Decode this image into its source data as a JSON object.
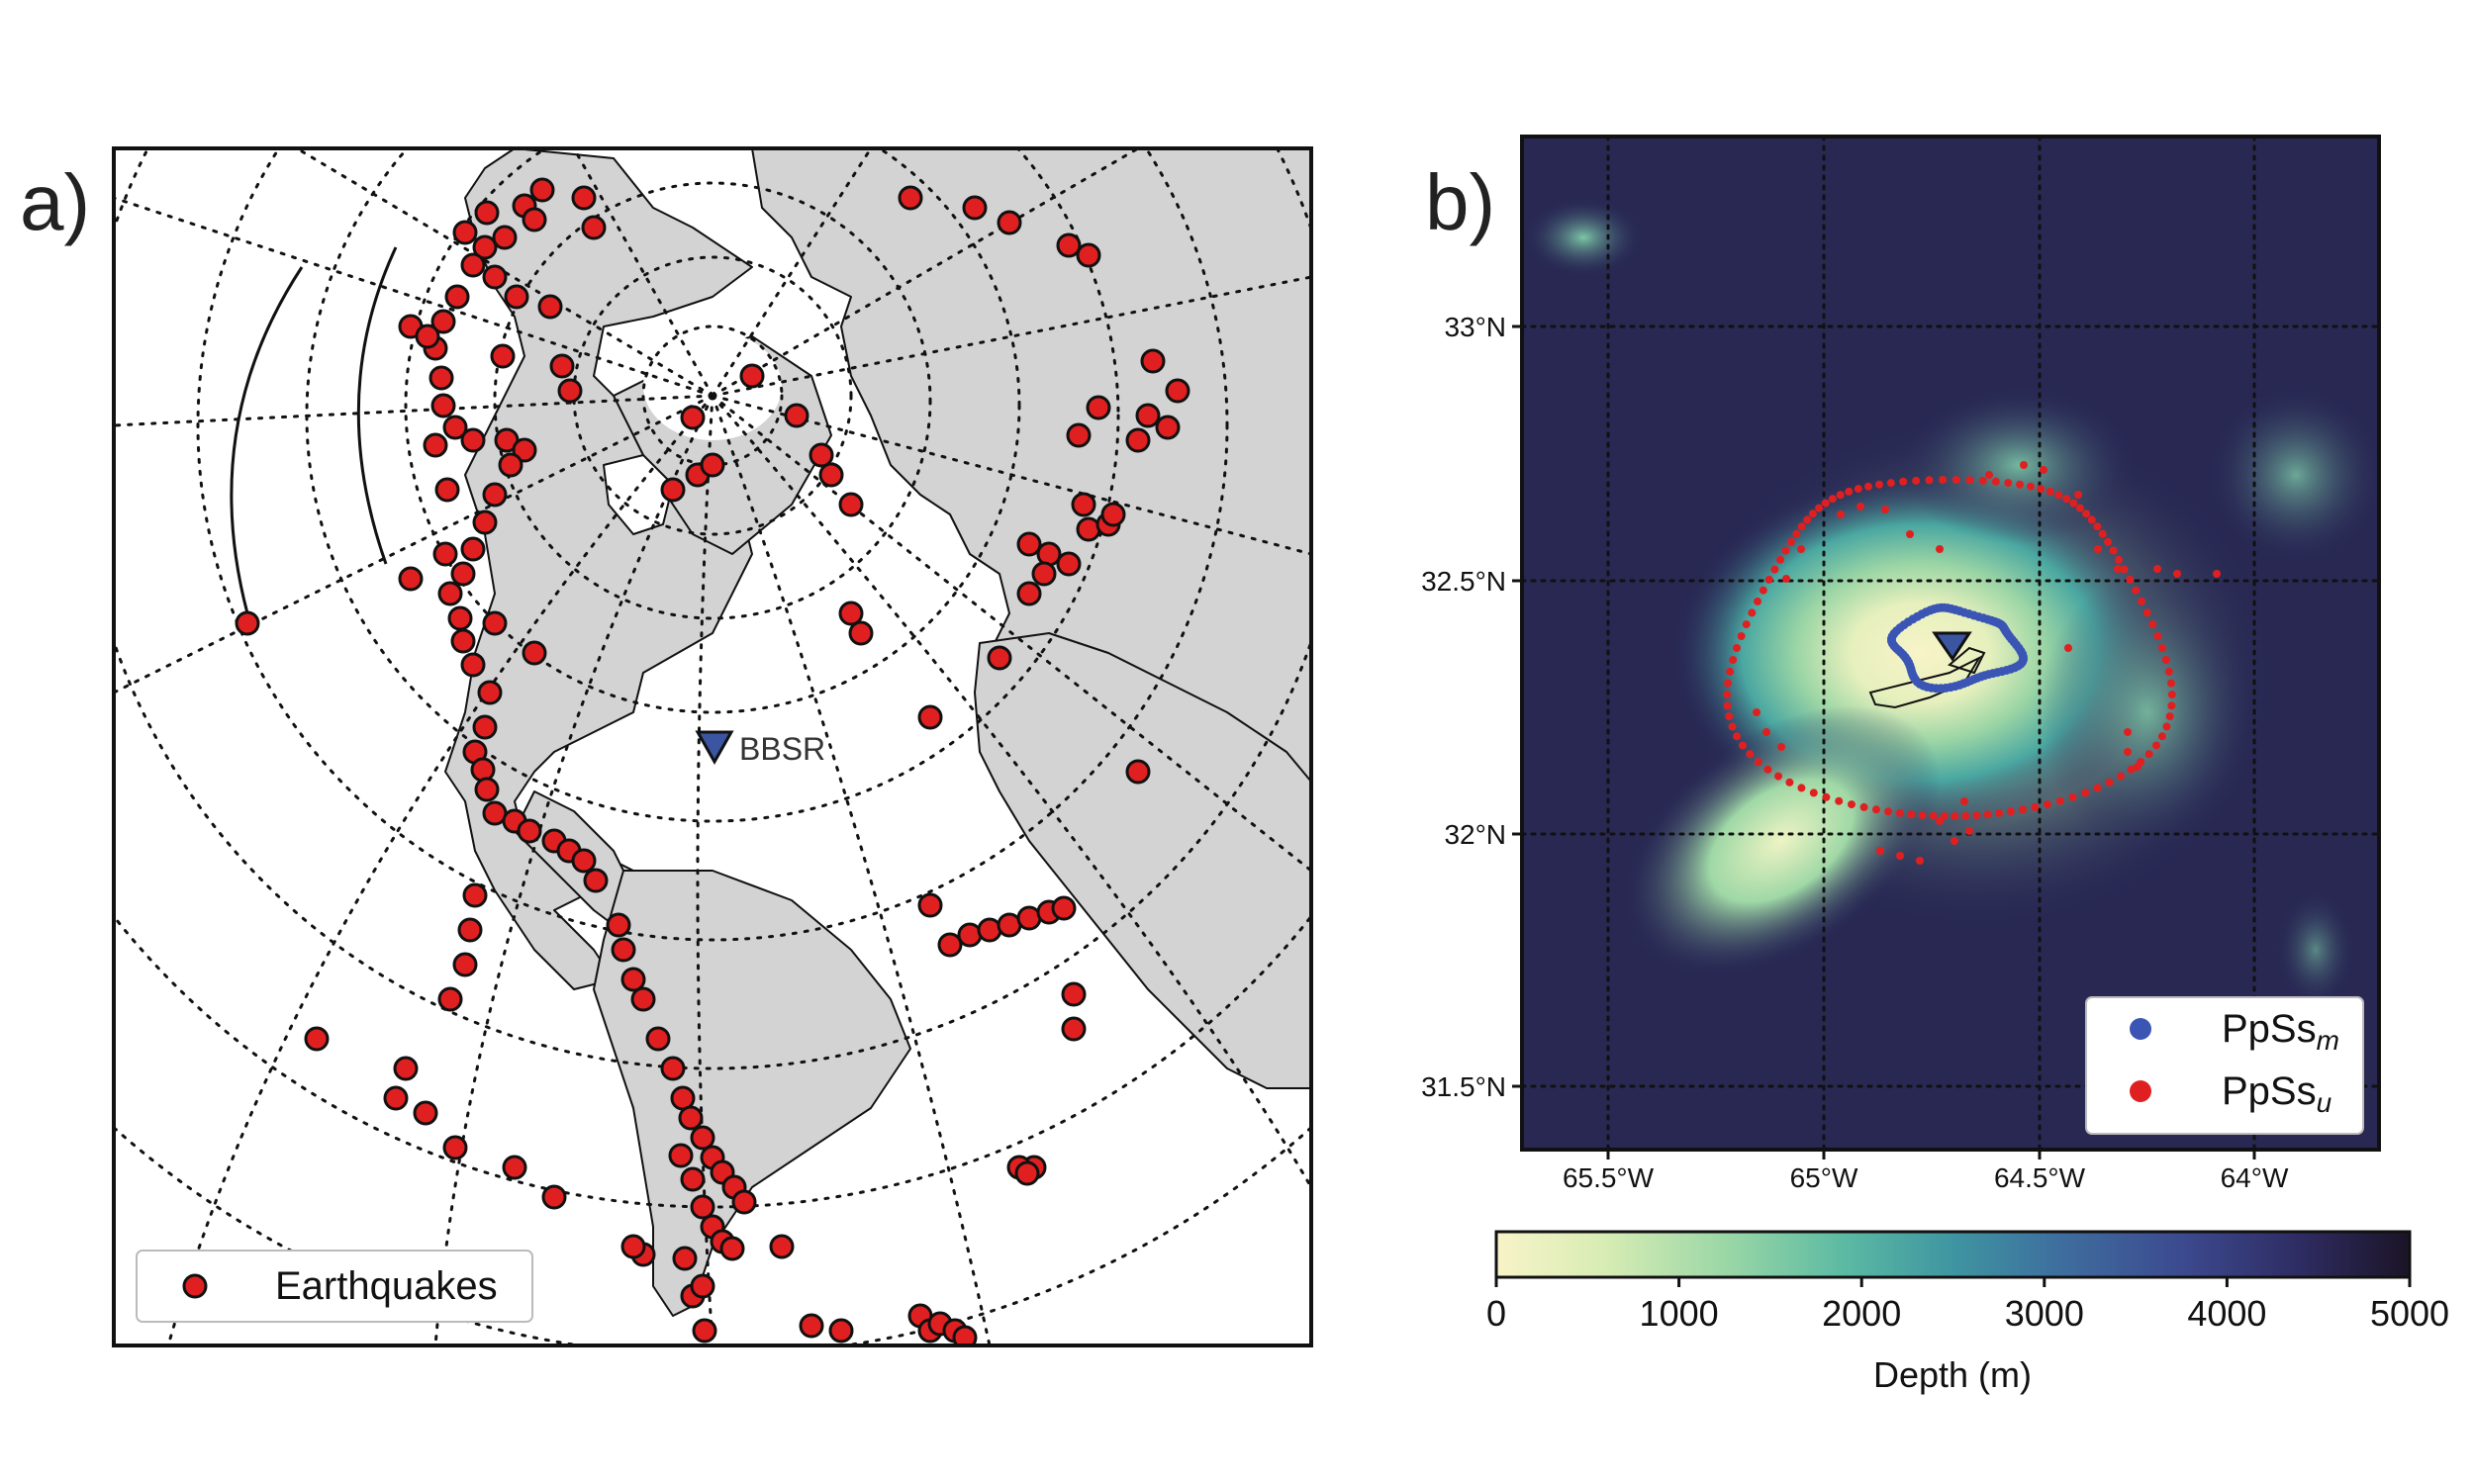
{
  "panel_a": {
    "label": "a)",
    "station_label": "BBSR",
    "legend_label": "Earthquakes",
    "colors": {
      "land": "#d3d3d3",
      "ocean": "#ffffff",
      "earthquake": "#e02020",
      "station": "#3b55a0"
    }
  },
  "panel_b": {
    "label": "b)",
    "lat_ticks": [
      "33°N",
      "32.5°N",
      "32°N",
      "31.5°N"
    ],
    "lon_ticks": [
      "65.5°W",
      "65°W",
      "64.5°W",
      "64°W"
    ],
    "legend": [
      {
        "base": "PpSs",
        "sub": "m",
        "color": "#3b55b5"
      },
      {
        "base": "PpSs",
        "sub": "u",
        "color": "#e02020"
      }
    ],
    "colorbar": {
      "label": "Depth (m)",
      "ticks": [
        "0",
        "1000",
        "2000",
        "3000",
        "4000",
        "5000"
      ],
      "range": [
        0,
        5000
      ],
      "colormap": [
        "#f8f4c8",
        "#cfe9b0",
        "#8cd3a6",
        "#4fb3a3",
        "#3d8aa0",
        "#3e5f99",
        "#3b3e86",
        "#2a2450",
        "#1b1426"
      ]
    }
  }
}
